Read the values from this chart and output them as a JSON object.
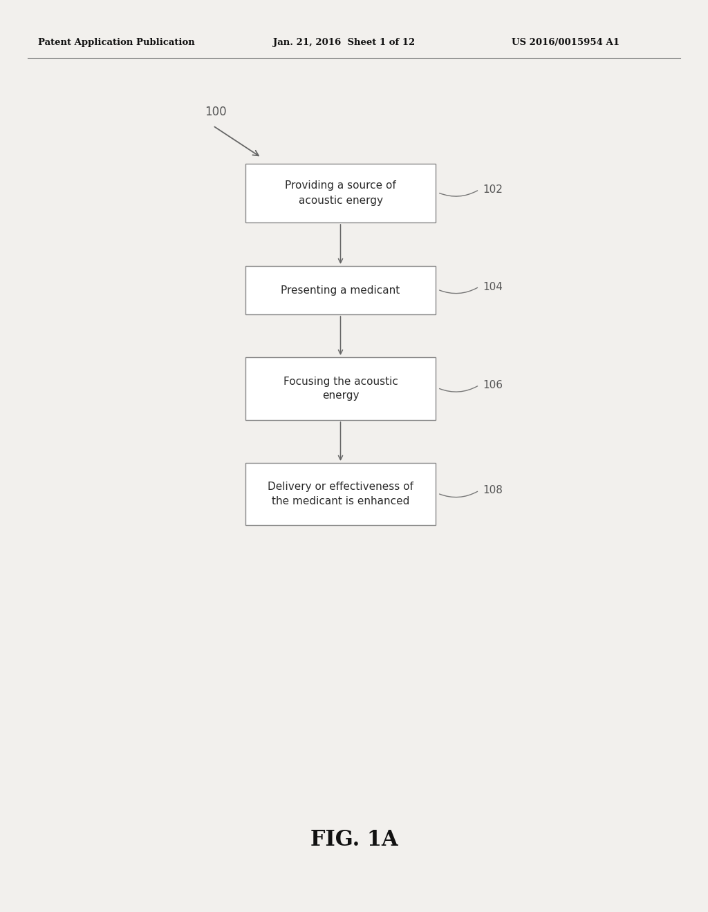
{
  "bg_color": "#f2f0ed",
  "header_left": "Patent Application Publication",
  "header_mid": "Jan. 21, 2016  Sheet 1 of 12",
  "header_right": "US 2016/0015954 A1",
  "figure_label": "FIG. 1A",
  "diagram_label": "100",
  "boxes": [
    {
      "label": "102",
      "text": "Providing a source of\nacoustic energy"
    },
    {
      "label": "104",
      "text": "Presenting a medicant"
    },
    {
      "label": "106",
      "text": "Focusing the acoustic\nenergy"
    },
    {
      "label": "108",
      "text": "Delivery or effectiveness of\nthe medicant is enhanced"
    }
  ],
  "box_facecolor": "#ffffff",
  "box_edgecolor": "#888888",
  "text_color": "#2a2a2a",
  "header_color": "#111111",
  "arrow_color": "#666666",
  "label_color": "#555555",
  "connector_color": "#777777"
}
